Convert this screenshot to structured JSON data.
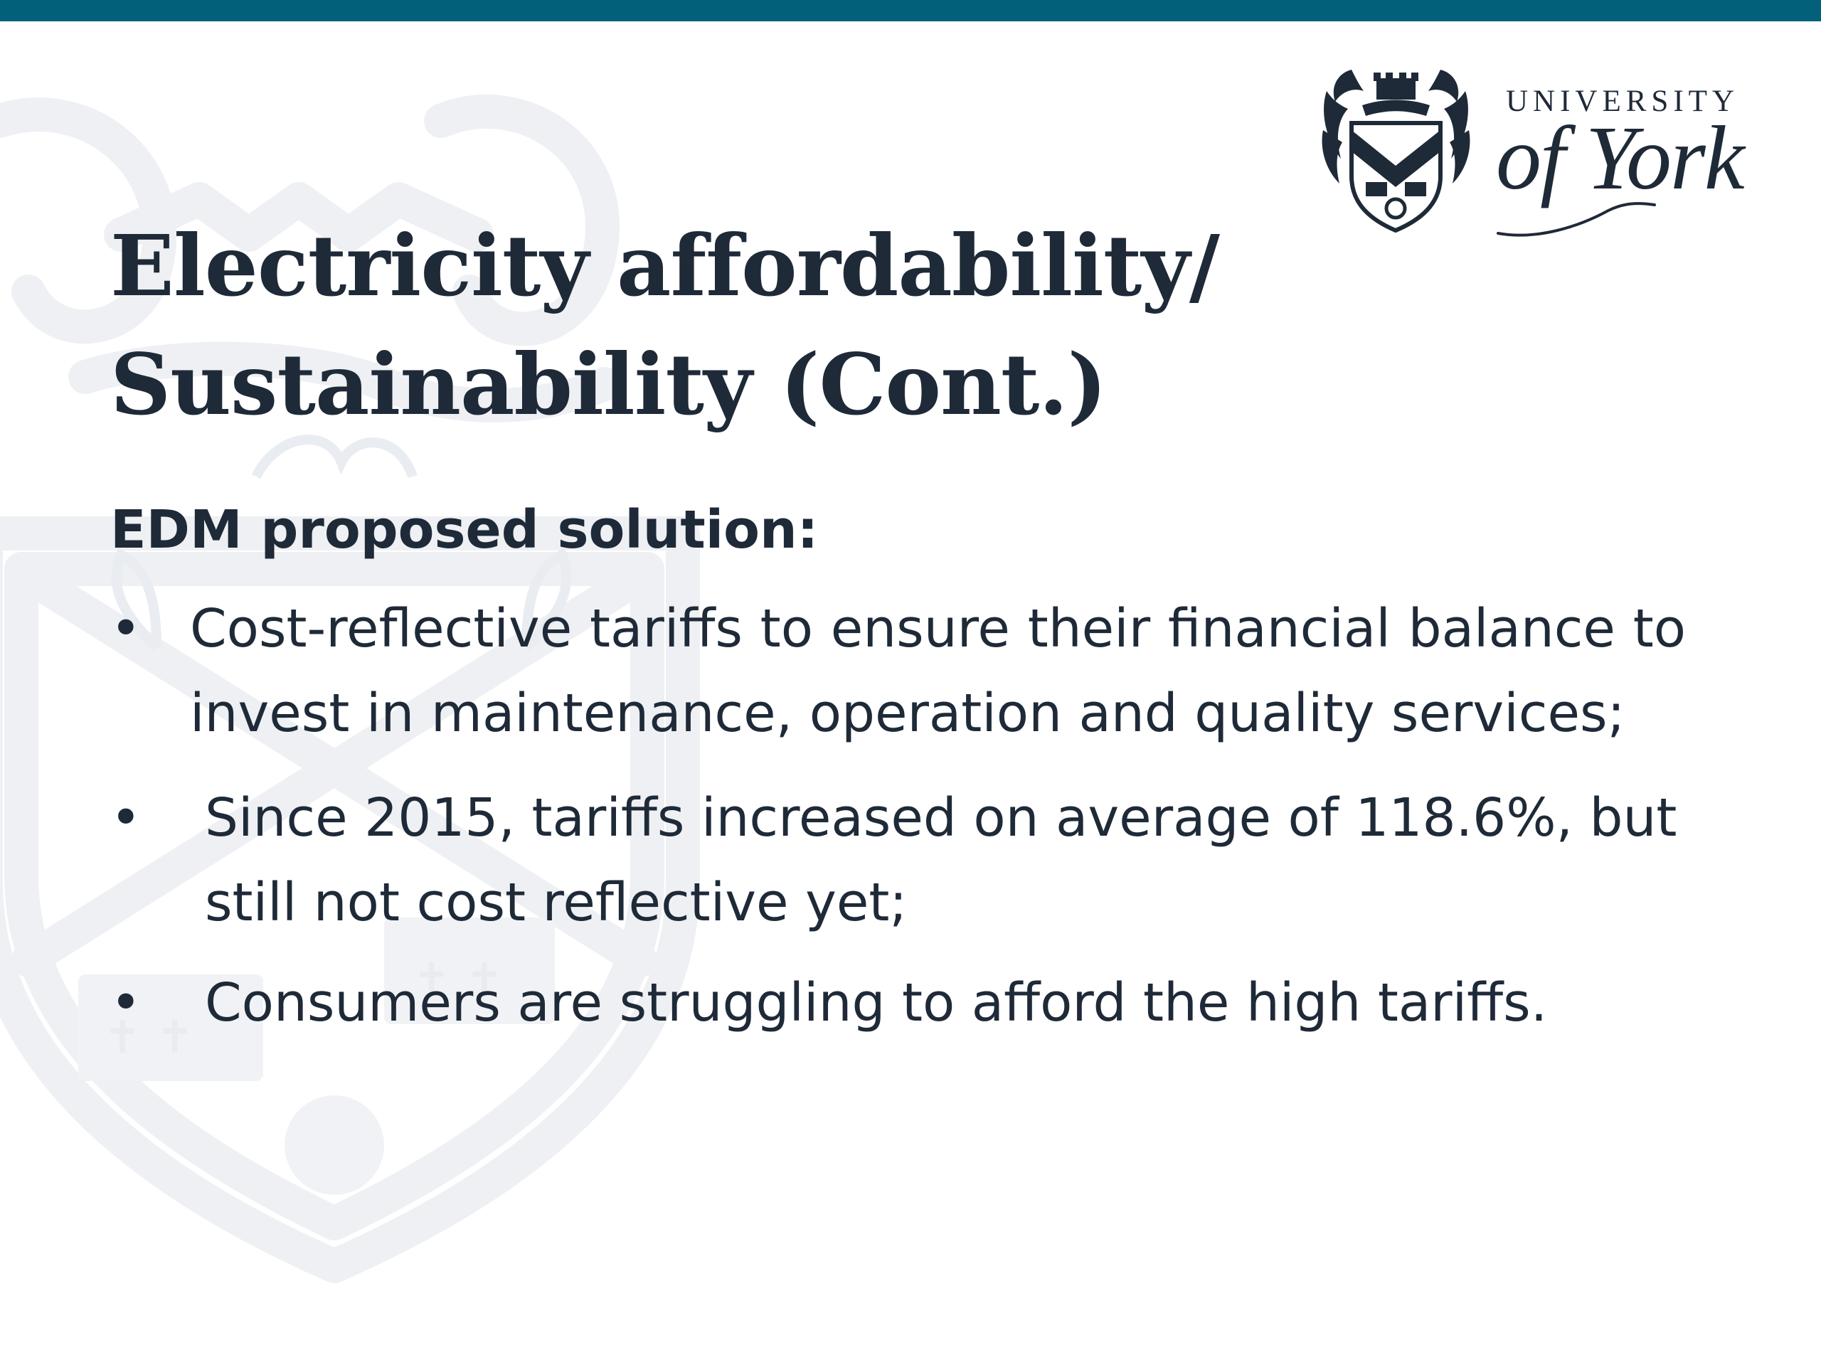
{
  "slide": {
    "title_line1": "Electricity affordability/",
    "title_line2": "Sustainability (Cont.)",
    "subheading": "EDM proposed solution:",
    "bullet_glyph": "•",
    "bullets": [
      "Cost-reflective tariffs to ensure their financial balance to invest in maintenance, operation and quality services;",
      "Since 2015, tariffs increased on average of 118.6%, but still not cost reflective yet;",
      "Consumers are struggling to afford the high tariffs."
    ]
  },
  "logo": {
    "line1": "UNIVERSITY",
    "line2": "of York"
  },
  "colors": {
    "top_bar": "#03607a",
    "text": "#1f2a38",
    "watermark": "#f2f3f5"
  },
  "icons": {
    "crest": "university-crest-icon",
    "watermark": "crest-watermark"
  }
}
